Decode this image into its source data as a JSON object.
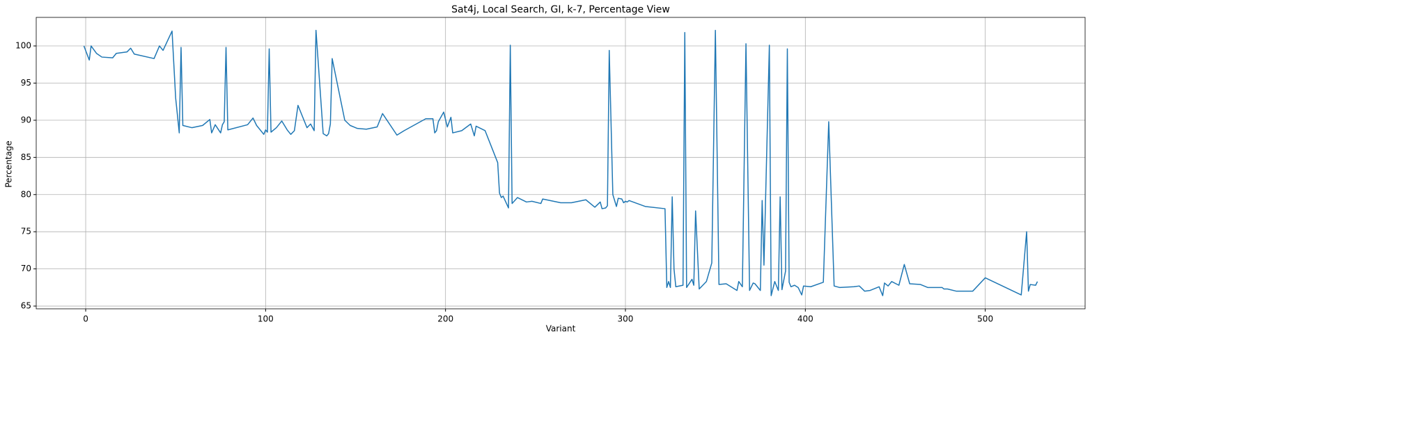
{
  "chart_data": {
    "type": "line",
    "title": "Sat4j, Local Search, GI, k-7, Percentage View",
    "xlabel": "Variant",
    "ylabel": "Percentage",
    "color": "#1f77b4",
    "grid": true,
    "xlim": [
      -27.5,
      555.5
    ],
    "ylim": [
      64.63,
      103.84
    ],
    "xticks": [
      0,
      100,
      200,
      300,
      400,
      500
    ],
    "yticks": [
      65,
      70,
      75,
      80,
      85,
      90,
      95,
      100
    ],
    "x": [
      -1,
      2,
      3,
      6,
      9,
      15,
      17,
      23,
      25,
      27,
      38,
      41,
      43,
      48,
      50,
      52,
      53,
      54,
      59,
      65,
      69,
      70,
      72,
      75,
      76,
      77,
      78,
      79,
      90,
      93,
      95,
      99,
      100,
      101,
      102,
      103,
      106,
      109,
      112,
      114,
      116,
      118,
      121,
      123,
      125,
      127,
      128,
      132,
      134,
      135,
      136,
      137,
      144,
      147,
      151,
      156,
      162,
      165,
      173,
      177,
      189,
      193,
      194,
      195,
      196,
      199,
      201,
      203,
      204,
      209,
      214,
      216,
      217,
      222,
      229,
      230,
      231,
      232,
      235,
      236,
      237,
      240,
      245,
      248,
      253,
      254,
      264,
      270,
      274,
      278,
      283,
      286,
      287,
      289,
      290,
      291,
      293,
      295,
      296,
      298,
      299,
      300,
      301,
      302,
      311,
      322,
      323,
      324,
      325,
      326,
      327,
      328,
      332,
      333,
      334,
      337,
      338,
      339,
      341,
      345,
      348,
      350,
      352,
      356,
      362,
      363,
      365,
      367,
      369,
      371,
      372,
      375,
      376,
      377,
      380,
      381,
      383,
      385,
      386,
      387,
      389,
      390,
      391,
      392,
      394,
      396,
      398,
      399,
      403,
      410,
      413,
      416,
      419,
      427,
      430,
      433,
      436,
      441,
      443,
      444,
      446,
      448,
      452,
      455,
      458,
      464,
      468,
      476,
      477,
      479,
      484,
      493,
      500,
      520,
      523,
      524,
      525,
      528,
      529
    ],
    "values": [
      100,
      98.1,
      100,
      99,
      98.5,
      98.4,
      99,
      99.2,
      99.7,
      98.9,
      98.3,
      100,
      99.4,
      102,
      93,
      88.3,
      99.8,
      89.3,
      89,
      89.3,
      90.1,
      88.3,
      89.4,
      88.3,
      89.4,
      89.8,
      99.8,
      88.7,
      89.4,
      90.3,
      89.3,
      88.1,
      88.7,
      88.4,
      99.6,
      88.4,
      89,
      89.9,
      88.7,
      88.1,
      88.6,
      92,
      90.2,
      89,
      89.5,
      88.6,
      102.1,
      88.2,
      87.9,
      88.2,
      89.5,
      98.3,
      90,
      89.3,
      88.9,
      88.8,
      89.1,
      90.9,
      88,
      88.6,
      90.2,
      90.2,
      88.3,
      88.6,
      89.8,
      91.1,
      89.1,
      90.4,
      88.3,
      88.6,
      89.5,
      87.9,
      89.2,
      88.6,
      84.3,
      80.2,
      79.6,
      79.8,
      78.2,
      100.1,
      78.8,
      79.6,
      79,
      79.1,
      78.8,
      79.4,
      78.9,
      78.9,
      79.1,
      79.3,
      78.3,
      79,
      78.1,
      78.2,
      78.5,
      99.4,
      80,
      78.4,
      79.5,
      79.4,
      78.9,
      79.1,
      79,
      79.2,
      78.4,
      78.1,
      67.5,
      68.3,
      67.5,
      79.7,
      70,
      67.6,
      67.8,
      101.8,
      67.5,
      68.6,
      67.8,
      77.8,
      67.3,
      68.3,
      70.8,
      102.1,
      67.9,
      68,
      67.1,
      68.3,
      67.6,
      100.3,
      67.1,
      68.1,
      68,
      67.1,
      79.2,
      70.5,
      100.1,
      66.4,
      68.3,
      67.1,
      79.7,
      67.2,
      69.7,
      99.6,
      68.2,
      67.6,
      67.8,
      67.5,
      66.5,
      67.7,
      67.6,
      68.2,
      89.8,
      67.7,
      67.5,
      67.6,
      67.7,
      67,
      67.1,
      67.6,
      66.4,
      68.1,
      67.7,
      68.3,
      67.8,
      70.6,
      68,
      67.9,
      67.5,
      67.5,
      67.3,
      67.3,
      67,
      67,
      68.8,
      66.5,
      75,
      67,
      67.9,
      67.8,
      68.3
    ]
  }
}
